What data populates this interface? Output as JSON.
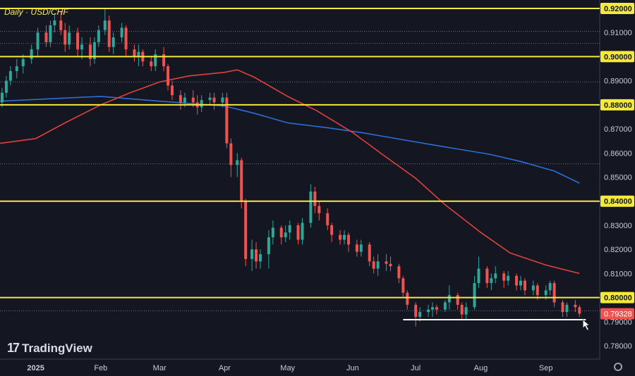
{
  "chart_data": {
    "type": "candlestick",
    "title": "Daily · USD/CHF",
    "symbol": "USD/CHF",
    "timeframe": "Daily",
    "ylim": [
      0.7735,
      0.9233
    ],
    "y_ticks": [
      "0.92000",
      "0.91000",
      "0.90000",
      "0.89000",
      "0.88000",
      "0.87000",
      "0.86000",
      "0.85000",
      "0.84000",
      "0.83000",
      "0.82000",
      "0.81000",
      "0.80000",
      "0.79328",
      "0.79000",
      "0.78000"
    ],
    "y_tick_values": [
      0.92,
      0.91,
      0.9,
      0.89,
      0.88,
      0.87,
      0.86,
      0.85,
      0.84,
      0.83,
      0.82,
      0.81,
      0.8,
      0.79328,
      0.79,
      0.78
    ],
    "x_ticks": [
      "2025",
      "Feb",
      "Mar",
      "Apr",
      "May",
      "Jun",
      "Jul",
      "Aug",
      "Sep"
    ],
    "x_tick_dates": [
      "2025-01-01",
      "2025-02-01",
      "2025-03-01",
      "2025-04-01",
      "2025-05-01",
      "2025-06-01",
      "2025-07-01",
      "2025-08-01",
      "2025-09-01"
    ],
    "last_price": "0.79328",
    "horizontal_levels": [
      {
        "value": 0.92,
        "color": "#f5e93a"
      },
      {
        "value": 0.9,
        "color": "#f5e93a"
      },
      {
        "value": 0.88,
        "color": "#f5e93a"
      },
      {
        "value": 0.84,
        "color": "#f5e93a"
      },
      {
        "value": 0.8,
        "color": "#f5e93a"
      },
      {
        "value": 0.7908,
        "color": "#ffffff",
        "from": "2025-06-25",
        "to": "2025-09-20"
      }
    ],
    "dotted_levels": [
      0.9105,
      0.9055,
      0.8895,
      0.8555,
      0.7945
    ],
    "moving_averages": [
      {
        "color": "#2b6fd6",
        "points": [
          [
            "2024-12-15",
            0.8815
          ],
          [
            "2025-02-01",
            0.8835
          ],
          [
            "2025-03-01",
            0.8815
          ],
          [
            "2025-04-01",
            0.8795
          ],
          [
            "2025-04-15",
            0.8765
          ],
          [
            "2025-05-01",
            0.8725
          ],
          [
            "2025-05-20",
            0.8705
          ],
          [
            "2025-06-05",
            0.8685
          ],
          [
            "2025-06-25",
            0.8655
          ],
          [
            "2025-07-15",
            0.8625
          ],
          [
            "2025-08-05",
            0.8595
          ],
          [
            "2025-08-20",
            0.8565
          ],
          [
            "2025-09-05",
            0.8525
          ],
          [
            "2025-09-17",
            0.8475
          ]
        ]
      },
      {
        "color": "#e0413a",
        "points": [
          [
            "2024-12-15",
            0.864
          ],
          [
            "2025-01-01",
            0.866
          ],
          [
            "2025-01-15",
            0.8725
          ],
          [
            "2025-02-01",
            0.88
          ],
          [
            "2025-02-15",
            0.885
          ],
          [
            "2025-03-01",
            0.8895
          ],
          [
            "2025-03-15",
            0.892
          ],
          [
            "2025-04-01",
            0.8935
          ],
          [
            "2025-04-07",
            0.8945
          ],
          [
            "2025-04-15",
            0.8915
          ],
          [
            "2025-05-01",
            0.8835
          ],
          [
            "2025-05-15",
            0.8775
          ],
          [
            "2025-06-01",
            0.8685
          ],
          [
            "2025-06-15",
            0.8595
          ],
          [
            "2025-07-01",
            0.8495
          ],
          [
            "2025-07-15",
            0.8385
          ],
          [
            "2025-08-01",
            0.827
          ],
          [
            "2025-08-15",
            0.8185
          ],
          [
            "2025-09-01",
            0.8135
          ],
          [
            "2025-09-17",
            0.81
          ]
        ]
      }
    ],
    "ohlc": [
      [
        "2024-12-16",
        0.881,
        0.887,
        0.879,
        0.885
      ],
      [
        "2024-12-18",
        0.885,
        0.892,
        0.883,
        0.89
      ],
      [
        "2024-12-20",
        0.89,
        0.896,
        0.888,
        0.894
      ],
      [
        "2024-12-23",
        0.894,
        0.899,
        0.891,
        0.896
      ],
      [
        "2024-12-26",
        0.896,
        0.901,
        0.893,
        0.899
      ],
      [
        "2024-12-30",
        0.899,
        0.905,
        0.897,
        0.903
      ],
      [
        "2025-01-02",
        0.903,
        0.912,
        0.9,
        0.91
      ],
      [
        "2025-01-06",
        0.91,
        0.913,
        0.904,
        0.906
      ],
      [
        "2025-01-08",
        0.906,
        0.915,
        0.904,
        0.913
      ],
      [
        "2025-01-10",
        0.913,
        0.918,
        0.91,
        0.915
      ],
      [
        "2025-01-13",
        0.915,
        0.919,
        0.909,
        0.911
      ],
      [
        "2025-01-15",
        0.911,
        0.914,
        0.902,
        0.905
      ],
      [
        "2025-01-17",
        0.905,
        0.913,
        0.903,
        0.91
      ],
      [
        "2025-01-21",
        0.91,
        0.912,
        0.9,
        0.903
      ],
      [
        "2025-01-23",
        0.903,
        0.908,
        0.899,
        0.905
      ],
      [
        "2025-01-27",
        0.905,
        0.908,
        0.896,
        0.899
      ],
      [
        "2025-01-29",
        0.899,
        0.908,
        0.897,
        0.906
      ],
      [
        "2025-01-31",
        0.906,
        0.913,
        0.904,
        0.911
      ],
      [
        "2025-02-03",
        0.911,
        0.92,
        0.909,
        0.915
      ],
      [
        "2025-02-05",
        0.915,
        0.917,
        0.902,
        0.904
      ],
      [
        "2025-02-07",
        0.904,
        0.91,
        0.901,
        0.908
      ],
      [
        "2025-02-11",
        0.908,
        0.914,
        0.906,
        0.912
      ],
      [
        "2025-02-13",
        0.912,
        0.913,
        0.9,
        0.903
      ],
      [
        "2025-02-17",
        0.903,
        0.905,
        0.898,
        0.9
      ],
      [
        "2025-02-19",
        0.9,
        0.905,
        0.896,
        0.902
      ],
      [
        "2025-02-21",
        0.902,
        0.903,
        0.896,
        0.898
      ],
      [
        "2025-02-25",
        0.898,
        0.9,
        0.894,
        0.896
      ],
      [
        "2025-02-27",
        0.896,
        0.903,
        0.894,
        0.901
      ],
      [
        "2025-03-03",
        0.901,
        0.904,
        0.894,
        0.896
      ],
      [
        "2025-03-05",
        0.896,
        0.897,
        0.886,
        0.888
      ],
      [
        "2025-03-07",
        0.888,
        0.89,
        0.882,
        0.884
      ],
      [
        "2025-03-11",
        0.884,
        0.886,
        0.878,
        0.881
      ],
      [
        "2025-03-13",
        0.881,
        0.885,
        0.879,
        0.883
      ],
      [
        "2025-03-17",
        0.883,
        0.886,
        0.879,
        0.881
      ],
      [
        "2025-03-19",
        0.881,
        0.884,
        0.876,
        0.879
      ],
      [
        "2025-03-21",
        0.879,
        0.884,
        0.877,
        0.882
      ],
      [
        "2025-03-25",
        0.882,
        0.885,
        0.88,
        0.883
      ],
      [
        "2025-03-27",
        0.883,
        0.885,
        0.878,
        0.881
      ],
      [
        "2025-03-31",
        0.881,
        0.885,
        0.879,
        0.883
      ],
      [
        "2025-04-02",
        0.883,
        0.885,
        0.862,
        0.864
      ],
      [
        "2025-04-04",
        0.864,
        0.866,
        0.85,
        0.855
      ],
      [
        "2025-04-07",
        0.855,
        0.86,
        0.85,
        0.857
      ],
      [
        "2025-04-09",
        0.857,
        0.858,
        0.837,
        0.84
      ],
      [
        "2025-04-11",
        0.84,
        0.841,
        0.813,
        0.816
      ],
      [
        "2025-04-14",
        0.816,
        0.824,
        0.811,
        0.82
      ],
      [
        "2025-04-16",
        0.82,
        0.823,
        0.812,
        0.815
      ],
      [
        "2025-04-18",
        0.815,
        0.82,
        0.812,
        0.818
      ],
      [
        "2025-04-22",
        0.818,
        0.828,
        0.812,
        0.825
      ],
      [
        "2025-04-24",
        0.825,
        0.832,
        0.822,
        0.829
      ],
      [
        "2025-04-28",
        0.829,
        0.83,
        0.822,
        0.825
      ],
      [
        "2025-04-30",
        0.825,
        0.83,
        0.823,
        0.827
      ],
      [
        "2025-05-02",
        0.827,
        0.832,
        0.824,
        0.83
      ],
      [
        "2025-05-06",
        0.83,
        0.831,
        0.822,
        0.824
      ],
      [
        "2025-05-08",
        0.824,
        0.833,
        0.822,
        0.831
      ],
      [
        "2025-05-12",
        0.831,
        0.847,
        0.829,
        0.844
      ],
      [
        "2025-05-14",
        0.844,
        0.846,
        0.835,
        0.838
      ],
      [
        "2025-05-16",
        0.838,
        0.84,
        0.832,
        0.835
      ],
      [
        "2025-05-20",
        0.835,
        0.837,
        0.828,
        0.83
      ],
      [
        "2025-05-22",
        0.83,
        0.831,
        0.823,
        0.826
      ],
      [
        "2025-05-26",
        0.826,
        0.828,
        0.822,
        0.824
      ],
      [
        "2025-05-28",
        0.824,
        0.828,
        0.822,
        0.826
      ],
      [
        "2025-05-30",
        0.826,
        0.827,
        0.819,
        0.822
      ],
      [
        "2025-06-03",
        0.822,
        0.824,
        0.817,
        0.819
      ],
      [
        "2025-06-05",
        0.819,
        0.824,
        0.817,
        0.822
      ],
      [
        "2025-06-09",
        0.822,
        0.823,
        0.813,
        0.815
      ],
      [
        "2025-06-11",
        0.815,
        0.817,
        0.81,
        0.812
      ],
      [
        "2025-06-13",
        0.812,
        0.818,
        0.809,
        0.815
      ],
      [
        "2025-06-17",
        0.815,
        0.818,
        0.811,
        0.814
      ],
      [
        "2025-06-19",
        0.814,
        0.817,
        0.811,
        0.813
      ],
      [
        "2025-06-23",
        0.813,
        0.814,
        0.806,
        0.808
      ],
      [
        "2025-06-25",
        0.808,
        0.809,
        0.8,
        0.802
      ],
      [
        "2025-06-27",
        0.802,
        0.803,
        0.795,
        0.797
      ],
      [
        "2025-07-01",
        0.797,
        0.798,
        0.788,
        0.792
      ],
      [
        "2025-07-03",
        0.792,
        0.796,
        0.79,
        0.794
      ],
      [
        "2025-07-07",
        0.794,
        0.797,
        0.792,
        0.795
      ],
      [
        "2025-07-09",
        0.795,
        0.798,
        0.792,
        0.796
      ],
      [
        "2025-07-11",
        0.796,
        0.797,
        0.793,
        0.795
      ],
      [
        "2025-07-15",
        0.795,
        0.799,
        0.794,
        0.798
      ],
      [
        "2025-07-17",
        0.798,
        0.805,
        0.795,
        0.801
      ],
      [
        "2025-07-21",
        0.801,
        0.802,
        0.795,
        0.797
      ],
      [
        "2025-07-23",
        0.797,
        0.798,
        0.791,
        0.793
      ],
      [
        "2025-07-25",
        0.793,
        0.798,
        0.791,
        0.796
      ],
      [
        "2025-07-29",
        0.796,
        0.809,
        0.795,
        0.806
      ],
      [
        "2025-07-31",
        0.806,
        0.817,
        0.804,
        0.812
      ],
      [
        "2025-08-04",
        0.812,
        0.813,
        0.804,
        0.806
      ],
      [
        "2025-08-06",
        0.806,
        0.81,
        0.803,
        0.808
      ],
      [
        "2025-08-08",
        0.808,
        0.813,
        0.806,
        0.81
      ],
      [
        "2025-08-12",
        0.81,
        0.811,
        0.804,
        0.807
      ],
      [
        "2025-08-14",
        0.807,
        0.811,
        0.805,
        0.809
      ],
      [
        "2025-08-18",
        0.809,
        0.81,
        0.803,
        0.805
      ],
      [
        "2025-08-20",
        0.805,
        0.809,
        0.803,
        0.807
      ],
      [
        "2025-08-22",
        0.807,
        0.808,
        0.801,
        0.803
      ],
      [
        "2025-08-26",
        0.803,
        0.807,
        0.801,
        0.805
      ],
      [
        "2025-08-28",
        0.805,
        0.806,
        0.799,
        0.801
      ],
      [
        "2025-09-01",
        0.801,
        0.805,
        0.799,
        0.803
      ],
      [
        "2025-09-03",
        0.803,
        0.807,
        0.801,
        0.806
      ],
      [
        "2025-09-05",
        0.806,
        0.807,
        0.796,
        0.798
      ],
      [
        "2025-09-09",
        0.798,
        0.799,
        0.792,
        0.794
      ],
      [
        "2025-09-11",
        0.794,
        0.798,
        0.792,
        0.797
      ],
      [
        "2025-09-15",
        0.797,
        0.799,
        0.794,
        0.796
      ],
      [
        "2025-09-17",
        0.796,
        0.797,
        0.792,
        0.7933
      ]
    ],
    "colors": {
      "up": "#2ea69a",
      "down": "#ef5350",
      "background": "#141722",
      "axis_text": "#c8ccd4",
      "price_tag": "#ef5350",
      "level_tag": "#f5e93a"
    },
    "grid": false
  },
  "branding": {
    "logo_text": "TradingView",
    "logo_mark": "17"
  }
}
